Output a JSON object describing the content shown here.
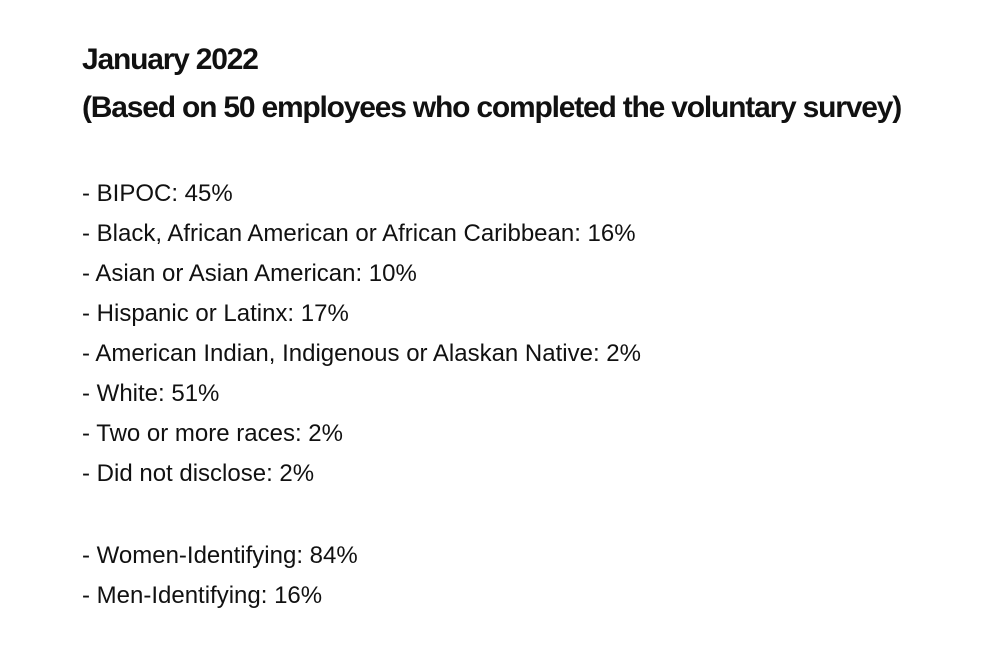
{
  "header": {
    "title": "January 2022",
    "subtitle": "(Based on 50 employees who completed the voluntary survey)"
  },
  "race_ethnicity": [
    "- BIPOC: 45%",
    "- Black, African American or African Caribbean: 16%",
    "- Asian or Asian American: 10%",
    "- Hispanic or Latinx: 17%",
    "- American Indian, Indigenous or Alaskan Native: 2%",
    "- White: 51%",
    "- Two or more races: 2%",
    "- Did not disclose: 2%"
  ],
  "gender": [
    "- Women-Identifying: 84%",
    "- Men-Identifying: 16%"
  ]
}
